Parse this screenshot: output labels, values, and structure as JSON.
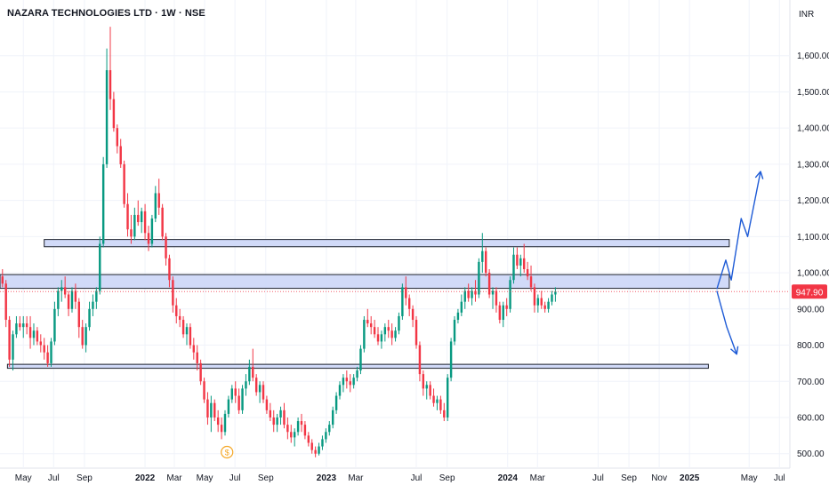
{
  "header": {
    "title": "NAZARA TECHNOLOGIES LTD · 1W · NSE",
    "currency": "INR"
  },
  "colors": {
    "up": "#089981",
    "down": "#f23645",
    "zone_fill": "#c9d4f7",
    "zone_stroke": "#1e222d",
    "arrow": "#1e5bd6",
    "price_tag": "#f23645",
    "dividend_marker": "#f5a623"
  },
  "chart_data": {
    "type": "candlestick",
    "title": "NAZARA TECHNOLOGIES LTD · 1W · NSE",
    "y_axis": {
      "ticks": [
        500,
        600,
        700,
        800,
        900,
        1000,
        1100,
        1200,
        1300,
        1400,
        1500,
        1600
      ],
      "tick_labels": [
        "500.00",
        "600.00",
        "700.00",
        "800.00",
        "900.00",
        "1,000.00",
        "1,100.00",
        "1,200.00",
        "1,300.00",
        "1,400.00",
        "1,500.00",
        "1,600.00"
      ],
      "ylim": [
        460,
        1700
      ],
      "side": "right"
    },
    "x_axis": {
      "ticks": [
        {
          "label": "May",
          "date": "2021-05-01",
          "bold": false
        },
        {
          "label": "Jul",
          "date": "2021-07-01",
          "bold": false
        },
        {
          "label": "Sep",
          "date": "2021-09-01",
          "bold": false
        },
        {
          "label": "2022",
          "date": "2022-01-01",
          "bold": true
        },
        {
          "label": "Mar",
          "date": "2022-03-01",
          "bold": false
        },
        {
          "label": "May",
          "date": "2022-05-01",
          "bold": false
        },
        {
          "label": "Jul",
          "date": "2022-07-01",
          "bold": false
        },
        {
          "label": "Sep",
          "date": "2022-09-01",
          "bold": false
        },
        {
          "label": "2023",
          "date": "2023-01-01",
          "bold": true
        },
        {
          "label": "Mar",
          "date": "2023-03-01",
          "bold": false
        },
        {
          "label": "Jul",
          "date": "2023-07-01",
          "bold": false
        },
        {
          "label": "Sep",
          "date": "2023-09-01",
          "bold": false
        },
        {
          "label": "2024",
          "date": "2024-01-01",
          "bold": true
        },
        {
          "label": "Mar",
          "date": "2024-03-01",
          "bold": false
        },
        {
          "label": "Jul",
          "date": "2024-07-01",
          "bold": false
        },
        {
          "label": "Sep",
          "date": "2024-09-01",
          "bold": false
        },
        {
          "label": "Nov",
          "date": "2024-11-01",
          "bold": false
        },
        {
          "label": "2025",
          "date": "2025-01-01",
          "bold": true
        },
        {
          "label": "May",
          "date": "2025-05-01",
          "bold": false
        },
        {
          "label": "Jul",
          "date": "2025-07-01",
          "bold": false
        }
      ],
      "xlim": [
        "2021-03-15",
        "2025-07-22"
      ]
    },
    "last_price": {
      "value": 947.9,
      "label": "947.90"
    },
    "grid": true,
    "zones": [
      {
        "low": 1072,
        "high": 1092,
        "start": "2021-06-12",
        "end": "2025-03-22"
      },
      {
        "low": 957,
        "high": 995,
        "start": "2021-03-15",
        "end": "2025-03-22"
      },
      {
        "low": 736,
        "high": 747,
        "start": "2021-03-30",
        "end": "2025-02-08"
      }
    ],
    "arrows": [
      {
        "points": [
          [
            "2025-02-25",
            955
          ],
          [
            "2025-03-15",
            1035
          ],
          [
            "2025-03-26",
            980
          ],
          [
            "2025-04-15",
            1150
          ],
          [
            "2025-04-28",
            1100
          ],
          [
            "2025-05-24",
            1280
          ]
        ],
        "end_arrow": "up"
      },
      {
        "points": [
          [
            "2025-02-25",
            950
          ],
          [
            "2025-03-17",
            850
          ],
          [
            "2025-04-06",
            775
          ]
        ],
        "end_arrow": "down"
      }
    ],
    "dividend_marker": {
      "date": "2022-06-15",
      "label": "$"
    },
    "candles_ohlc": [
      [
        990,
        1010,
        960,
        970
      ],
      [
        970,
        980,
        850,
        870
      ],
      [
        870,
        880,
        740,
        760
      ],
      [
        760,
        840,
        730,
        830
      ],
      [
        830,
        880,
        820,
        860
      ],
      [
        860,
        880,
        840,
        850
      ],
      [
        850,
        880,
        820,
        860
      ],
      [
        860,
        880,
        830,
        850
      ],
      [
        850,
        880,
        790,
        820
      ],
      [
        820,
        860,
        800,
        840
      ],
      [
        840,
        850,
        800,
        810
      ],
      [
        810,
        830,
        780,
        800
      ],
      [
        800,
        820,
        760,
        780
      ],
      [
        780,
        800,
        740,
        750
      ],
      [
        750,
        820,
        740,
        810
      ],
      [
        810,
        920,
        800,
        900
      ],
      [
        900,
        960,
        880,
        950
      ],
      [
        950,
        980,
        920,
        960
      ],
      [
        960,
        990,
        930,
        940
      ],
      [
        940,
        950,
        880,
        900
      ],
      [
        900,
        960,
        890,
        950
      ],
      [
        950,
        970,
        900,
        920
      ],
      [
        920,
        930,
        820,
        850
      ],
      [
        850,
        870,
        790,
        800
      ],
      [
        800,
        860,
        780,
        850
      ],
      [
        850,
        920,
        840,
        900
      ],
      [
        900,
        940,
        880,
        920
      ],
      [
        920,
        960,
        900,
        950
      ],
      [
        950,
        1100,
        940,
        1080
      ],
      [
        1080,
        1320,
        1070,
        1300
      ],
      [
        1300,
        1620,
        1290,
        1560
      ],
      [
        1560,
        1680,
        1450,
        1480
      ],
      [
        1480,
        1500,
        1390,
        1400
      ],
      [
        1400,
        1410,
        1330,
        1350
      ],
      [
        1350,
        1370,
        1290,
        1300
      ],
      [
        1300,
        1310,
        1180,
        1190
      ],
      [
        1190,
        1220,
        1100,
        1120
      ],
      [
        1120,
        1160,
        1080,
        1100
      ],
      [
        1100,
        1180,
        1090,
        1160
      ],
      [
        1160,
        1200,
        1130,
        1140
      ],
      [
        1140,
        1180,
        1110,
        1170
      ],
      [
        1170,
        1190,
        1090,
        1110
      ],
      [
        1110,
        1130,
        1060,
        1080
      ],
      [
        1080,
        1160,
        1070,
        1150
      ],
      [
        1150,
        1240,
        1140,
        1220
      ],
      [
        1220,
        1260,
        1160,
        1180
      ],
      [
        1180,
        1190,
        1090,
        1100
      ],
      [
        1100,
        1110,
        1020,
        1040
      ],
      [
        1040,
        1050,
        960,
        980
      ],
      [
        980,
        990,
        890,
        910
      ],
      [
        910,
        930,
        860,
        880
      ],
      [
        880,
        900,
        850,
        870
      ],
      [
        870,
        880,
        820,
        830
      ],
      [
        830,
        860,
        800,
        850
      ],
      [
        850,
        860,
        790,
        800
      ],
      [
        800,
        820,
        760,
        780
      ],
      [
        780,
        800,
        730,
        750
      ],
      [
        750,
        760,
        690,
        700
      ],
      [
        700,
        710,
        640,
        650
      ],
      [
        650,
        670,
        580,
        600
      ],
      [
        600,
        660,
        560,
        640
      ],
      [
        640,
        650,
        590,
        600
      ],
      [
        600,
        620,
        560,
        580
      ],
      [
        580,
        600,
        540,
        560
      ],
      [
        560,
        620,
        550,
        610
      ],
      [
        610,
        660,
        600,
        650
      ],
      [
        650,
        690,
        640,
        680
      ],
      [
        680,
        700,
        640,
        660
      ],
      [
        660,
        680,
        610,
        620
      ],
      [
        620,
        690,
        610,
        680
      ],
      [
        680,
        720,
        660,
        700
      ],
      [
        700,
        760,
        690,
        740
      ],
      [
        740,
        790,
        700,
        710
      ],
      [
        710,
        720,
        660,
        670
      ],
      [
        670,
        700,
        640,
        690
      ],
      [
        690,
        700,
        640,
        650
      ],
      [
        650,
        660,
        610,
        620
      ],
      [
        620,
        640,
        590,
        600
      ],
      [
        600,
        620,
        560,
        580
      ],
      [
        580,
        610,
        560,
        600
      ],
      [
        600,
        630,
        580,
        620
      ],
      [
        620,
        640,
        570,
        580
      ],
      [
        580,
        600,
        540,
        560
      ],
      [
        560,
        580,
        530,
        545
      ],
      [
        545,
        570,
        520,
        560
      ],
      [
        560,
        600,
        550,
        590
      ],
      [
        590,
        610,
        560,
        580
      ],
      [
        580,
        590,
        540,
        550
      ],
      [
        550,
        560,
        520,
        530
      ],
      [
        530,
        540,
        500,
        510
      ],
      [
        510,
        520,
        490,
        500
      ],
      [
        500,
        530,
        495,
        520
      ],
      [
        520,
        550,
        510,
        540
      ],
      [
        540,
        570,
        530,
        560
      ],
      [
        560,
        590,
        550,
        580
      ],
      [
        580,
        630,
        570,
        620
      ],
      [
        620,
        670,
        610,
        660
      ],
      [
        660,
        700,
        650,
        690
      ],
      [
        690,
        720,
        670,
        710
      ],
      [
        710,
        730,
        680,
        700
      ],
      [
        700,
        720,
        670,
        690
      ],
      [
        690,
        720,
        680,
        710
      ],
      [
        710,
        740,
        700,
        730
      ],
      [
        730,
        800,
        720,
        790
      ],
      [
        790,
        880,
        780,
        870
      ],
      [
        870,
        900,
        850,
        860
      ],
      [
        860,
        880,
        830,
        850
      ],
      [
        850,
        870,
        820,
        830
      ],
      [
        830,
        850,
        800,
        810
      ],
      [
        810,
        840,
        790,
        830
      ],
      [
        830,
        860,
        810,
        850
      ],
      [
        850,
        870,
        820,
        840
      ],
      [
        840,
        860,
        800,
        820
      ],
      [
        820,
        850,
        810,
        840
      ],
      [
        840,
        890,
        830,
        880
      ],
      [
        880,
        970,
        870,
        960
      ],
      [
        960,
        990,
        910,
        930
      ],
      [
        930,
        940,
        880,
        900
      ],
      [
        900,
        910,
        850,
        870
      ],
      [
        870,
        880,
        790,
        800
      ],
      [
        800,
        810,
        700,
        720
      ],
      [
        720,
        730,
        660,
        680
      ],
      [
        680,
        700,
        650,
        690
      ],
      [
        690,
        700,
        650,
        660
      ],
      [
        660,
        680,
        630,
        640
      ],
      [
        640,
        660,
        620,
        650
      ],
      [
        650,
        660,
        610,
        620
      ],
      [
        620,
        640,
        590,
        600
      ],
      [
        600,
        720,
        590,
        710
      ],
      [
        710,
        820,
        700,
        810
      ],
      [
        810,
        880,
        800,
        870
      ],
      [
        870,
        900,
        860,
        890
      ],
      [
        890,
        940,
        880,
        920
      ],
      [
        920,
        960,
        900,
        950
      ],
      [
        950,
        970,
        920,
        930
      ],
      [
        930,
        960,
        910,
        950
      ],
      [
        950,
        980,
        920,
        940
      ],
      [
        940,
        1040,
        930,
        1030
      ],
      [
        1030,
        1110,
        1000,
        1060
      ],
      [
        1060,
        1070,
        990,
        1000
      ],
      [
        1000,
        1010,
        930,
        940
      ],
      [
        940,
        960,
        900,
        950
      ],
      [
        950,
        960,
        890,
        910
      ],
      [
        910,
        920,
        860,
        870
      ],
      [
        870,
        920,
        850,
        910
      ],
      [
        910,
        930,
        880,
        900
      ],
      [
        900,
        990,
        890,
        980
      ],
      [
        980,
        1070,
        970,
        1050
      ],
      [
        1050,
        1070,
        1010,
        1020
      ],
      [
        1020,
        1050,
        990,
        1040
      ],
      [
        1040,
        1080,
        1000,
        1010
      ],
      [
        1010,
        1030,
        980,
        990
      ],
      [
        990,
        1020,
        950,
        960
      ],
      [
        960,
        970,
        890,
        910
      ],
      [
        910,
        940,
        890,
        930
      ],
      [
        930,
        950,
        900,
        910
      ],
      [
        910,
        920,
        890,
        900
      ],
      [
        900,
        930,
        890,
        920
      ],
      [
        920,
        950,
        910,
        940
      ],
      [
        940,
        960,
        920,
        948
      ]
    ]
  }
}
